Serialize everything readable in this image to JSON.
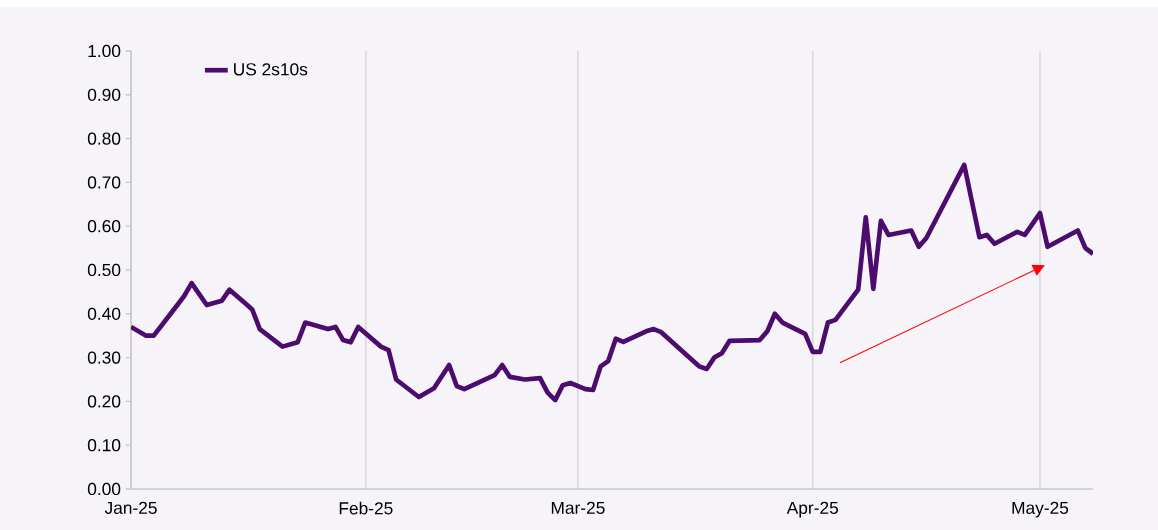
{
  "chart_data": {
    "type": "line",
    "x": [
      "2025-01-01",
      "2025-01-03",
      "2025-01-04",
      "2025-01-06",
      "2025-01-08",
      "2025-01-09",
      "2025-01-11",
      "2025-01-13",
      "2025-01-14",
      "2025-01-16",
      "2025-01-17",
      "2025-01-18",
      "2025-01-21",
      "2025-01-23",
      "2025-01-24",
      "2025-01-27",
      "2025-01-28",
      "2025-01-29",
      "2025-01-30",
      "2025-01-31",
      "2025-02-03",
      "2025-02-04",
      "2025-02-05",
      "2025-02-08",
      "2025-02-10",
      "2025-02-12",
      "2025-02-13",
      "2025-02-14",
      "2025-02-18",
      "2025-02-19",
      "2025-02-20",
      "2025-02-22",
      "2025-02-24",
      "2025-02-25",
      "2025-02-26",
      "2025-02-27",
      "2025-02-28",
      "2025-03-02",
      "2025-03-03",
      "2025-03-04",
      "2025-03-05",
      "2025-03-06",
      "2025-03-07",
      "2025-03-10",
      "2025-03-11",
      "2025-03-12",
      "2025-03-17",
      "2025-03-18",
      "2025-03-19",
      "2025-03-20",
      "2025-03-21",
      "2025-03-25",
      "2025-03-26",
      "2025-03-27",
      "2025-03-28",
      "2025-03-31",
      "2025-04-01",
      "2025-04-02",
      "2025-04-03",
      "2025-04-04",
      "2025-04-07",
      "2025-04-08",
      "2025-04-09",
      "2025-04-10",
      "2025-04-11",
      "2025-04-14",
      "2025-04-15",
      "2025-04-16",
      "2025-04-21",
      "2025-04-23",
      "2025-04-24",
      "2025-04-25",
      "2025-04-28",
      "2025-04-29",
      "2025-05-01",
      "2025-05-02",
      "2025-05-06",
      "2025-05-07",
      "2025-05-08"
    ],
    "series": [
      {
        "name": "US 2s10s",
        "color": "#4b0c6e",
        "values": [
          0.37,
          0.35,
          0.35,
          0.395,
          0.44,
          0.47,
          0.42,
          0.43,
          0.455,
          0.425,
          0.41,
          0.365,
          0.325,
          0.335,
          0.38,
          0.365,
          0.37,
          0.34,
          0.335,
          0.37,
          0.325,
          0.317,
          0.25,
          0.21,
          0.23,
          0.283,
          0.235,
          0.228,
          0.26,
          0.283,
          0.256,
          0.25,
          0.253,
          0.22,
          0.203,
          0.237,
          0.242,
          0.228,
          0.226,
          0.28,
          0.292,
          0.343,
          0.336,
          0.36,
          0.365,
          0.358,
          0.28,
          0.274,
          0.3,
          0.31,
          0.338,
          0.34,
          0.36,
          0.4,
          0.38,
          0.354,
          0.313,
          0.313,
          0.38,
          0.386,
          0.455,
          0.62,
          0.457,
          0.612,
          0.58,
          0.59,
          0.553,
          0.573,
          0.74,
          0.575,
          0.58,
          0.56,
          0.587,
          0.58,
          0.63,
          0.553,
          0.59,
          0.55,
          0.537
        ]
      }
    ],
    "xlim": [
      "2025-01-01",
      "2025-05-08"
    ],
    "xticks": [
      {
        "value": "2025-01-01",
        "label": "Jan-25"
      },
      {
        "value": "2025-02-01",
        "label": "Feb-25"
      },
      {
        "value": "2025-03-01",
        "label": "Mar-25"
      },
      {
        "value": "2025-04-01",
        "label": "Apr-25"
      },
      {
        "value": "2025-05-01",
        "label": "May-25"
      }
    ],
    "ylim": [
      0,
      1
    ],
    "yticks": [
      {
        "value": 0,
        "label": "0.00"
      },
      {
        "value": 0.1,
        "label": "0.10"
      },
      {
        "value": 0.2,
        "label": "0.20"
      },
      {
        "value": 0.3,
        "label": "0.30"
      },
      {
        "value": 0.4,
        "label": "0.40"
      },
      {
        "value": 0.5,
        "label": "0.50"
      },
      {
        "value": 0.6,
        "label": "0.60"
      },
      {
        "value": 0.7,
        "label": "0.70"
      },
      {
        "value": 0.8,
        "label": "0.80"
      },
      {
        "value": 0.9,
        "label": "0.90"
      },
      {
        "value": 1,
        "label": "1.00"
      }
    ],
    "grid": "x",
    "legend": "top left",
    "marker": "none",
    "line_style": "solid"
  }
}
